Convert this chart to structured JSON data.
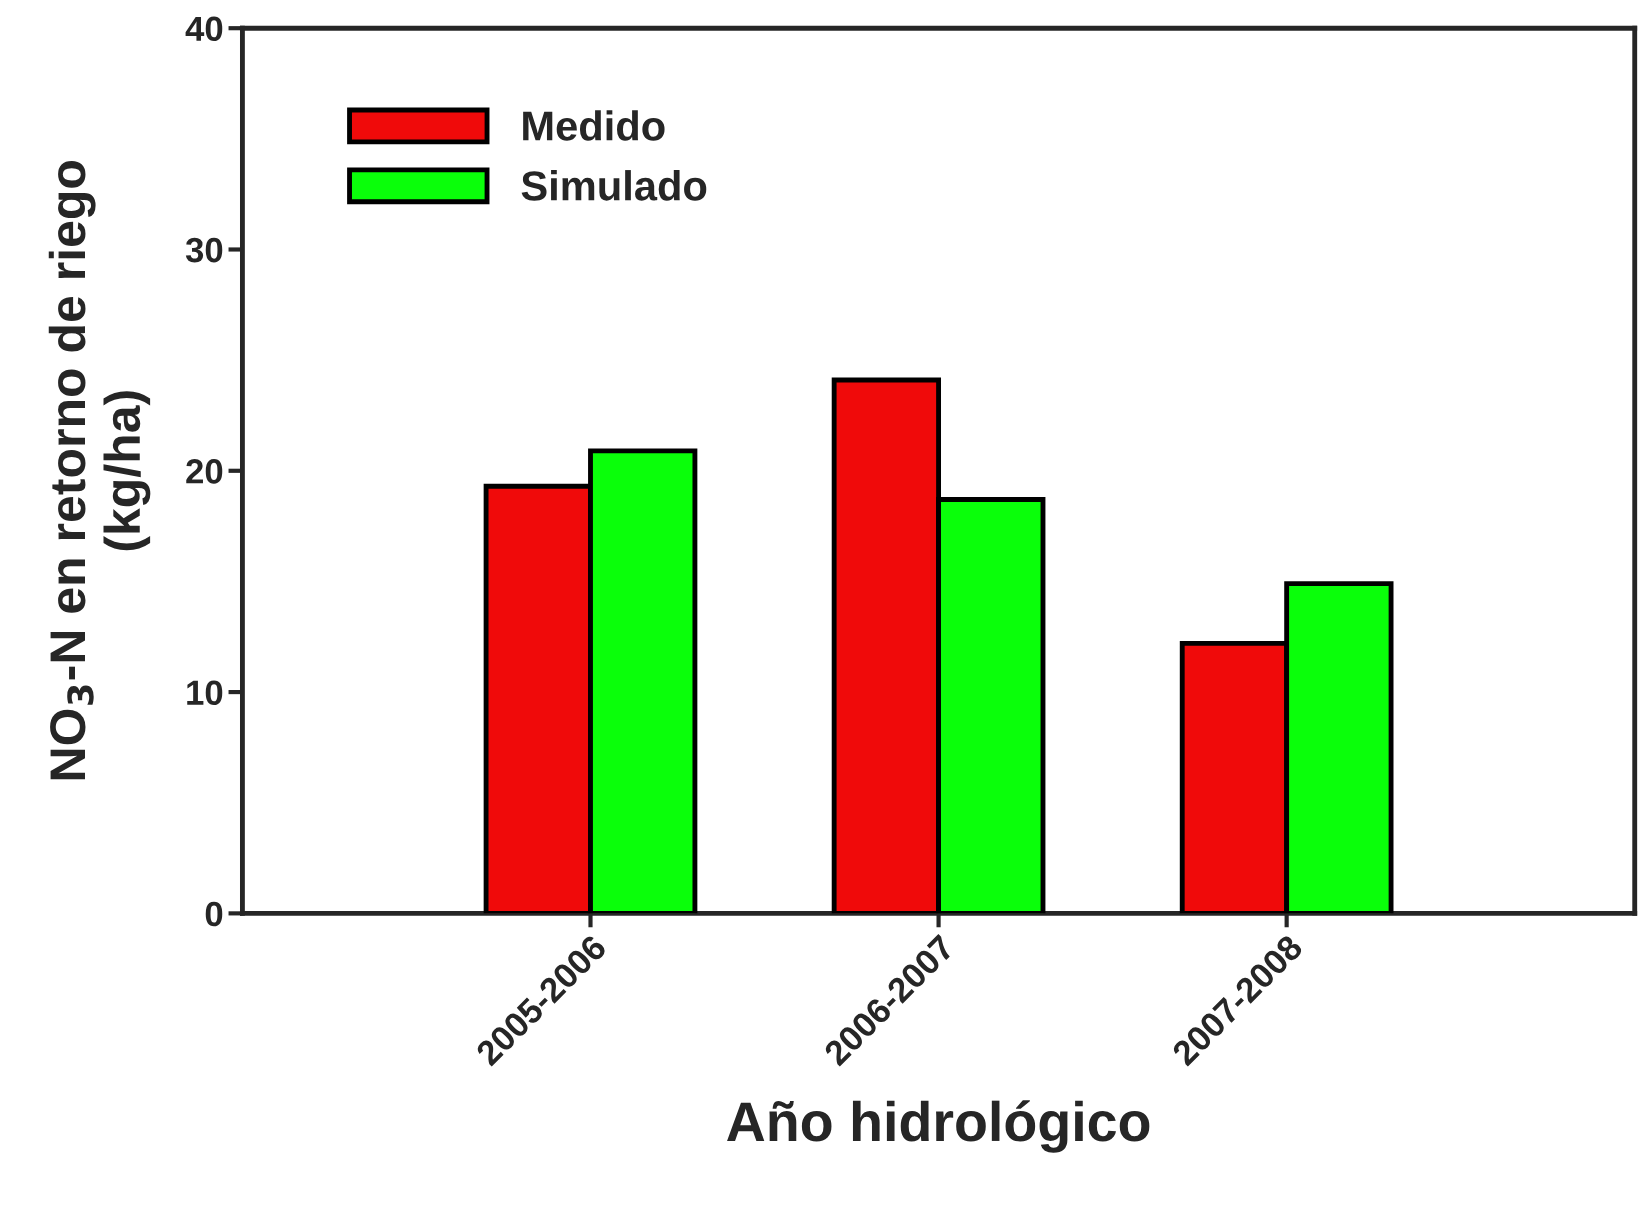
{
  "chart_data": {
    "type": "bar",
    "xlabel": "Año hidrológico",
    "ylabel": "NO$_{3}$-N en retorno de riego\n(kg/ha)",
    "categories": [
      "2005-2006",
      "2006-2007",
      "2007-2008"
    ],
    "series": [
      {
        "name": "Medido",
        "color": "#f00a0a",
        "values": [
          19.3,
          24.1,
          12.2
        ]
      },
      {
        "name": "Simulado",
        "color": "#0aff0a",
        "values": [
          20.9,
          18.7,
          14.9
        ]
      }
    ],
    "ylim": [
      0,
      40
    ],
    "yticks": [
      0,
      10,
      20,
      30,
      40
    ],
    "legend": "top left",
    "grid": false
  }
}
